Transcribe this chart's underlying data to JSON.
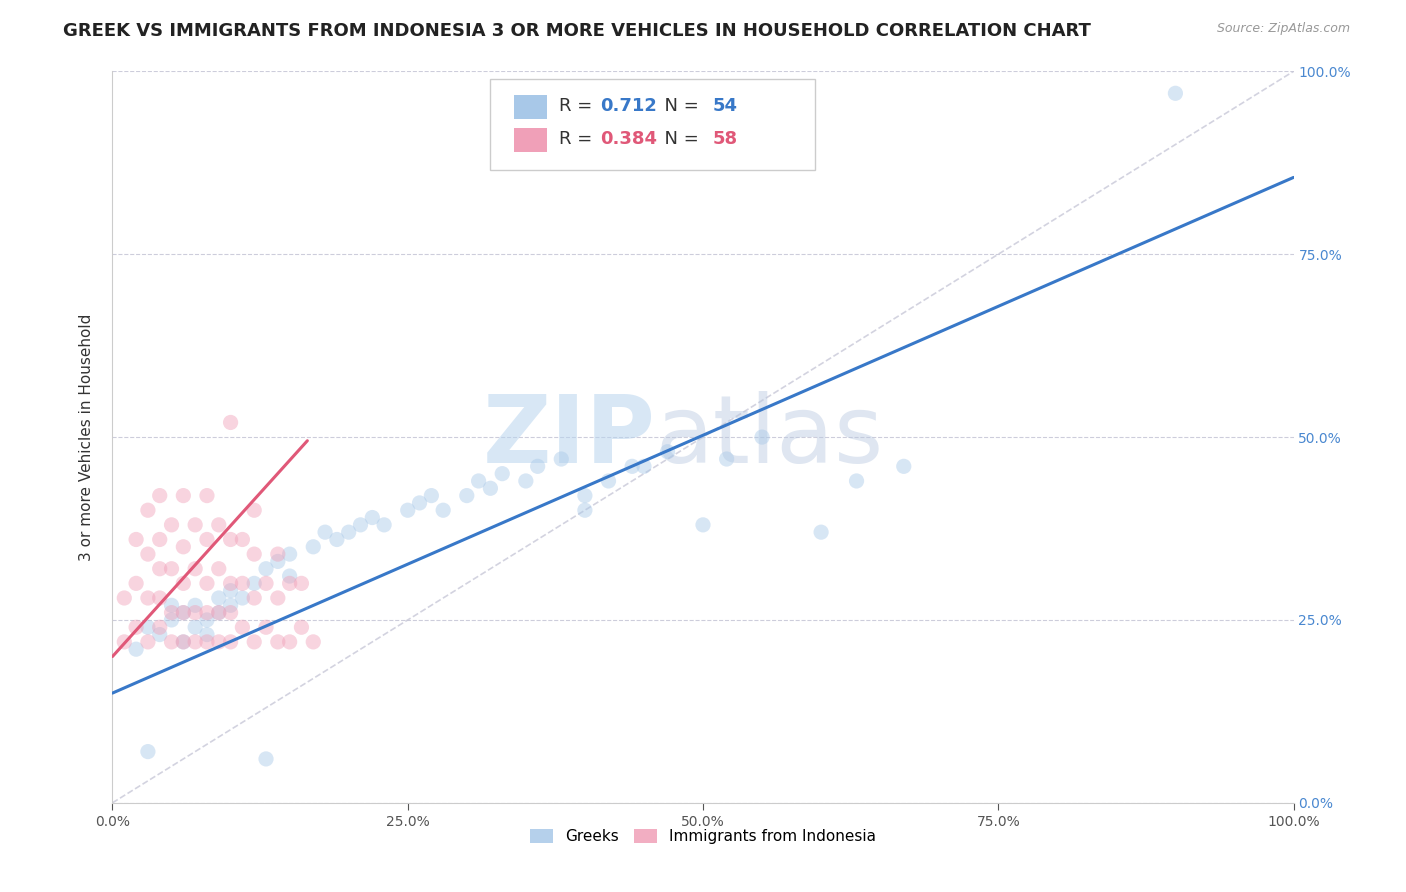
{
  "title": "GREEK VS IMMIGRANTS FROM INDONESIA 3 OR MORE VEHICLES IN HOUSEHOLD CORRELATION CHART",
  "source": "Source: ZipAtlas.com",
  "ylabel": "3 or more Vehicles in Household",
  "xlim": [
    0,
    1.0
  ],
  "ylim": [
    0,
    1.0
  ],
  "xticks": [
    0,
    0.25,
    0.5,
    0.75,
    1.0
  ],
  "yticks": [
    0,
    0.25,
    0.5,
    0.75,
    1.0
  ],
  "xticklabels": [
    "0.0%",
    "25.0%",
    "50.0%",
    "75.0%",
    "100.0%"
  ],
  "yticklabels_left": [
    "",
    "",
    "",
    "",
    ""
  ],
  "yticklabels_right": [
    "0.0%",
    "25.0%",
    "50.0%",
    "75.0%",
    "100.0%"
  ],
  "greek_R": 0.712,
  "greek_N": 54,
  "indonesia_R": 0.384,
  "indonesia_N": 58,
  "greek_color": "#a8c8e8",
  "indonesia_color": "#f0a0b8",
  "greek_line_color": "#3878c8",
  "indonesia_line_color": "#e05878",
  "ref_line_color": "#c8c8d8",
  "legend_label_greek": "Greeks",
  "legend_label_indonesia": "Immigrants from Indonesia",
  "watermark_zip": "ZIP",
  "watermark_atlas": "atlas",
  "greek_line_x0": 0.0,
  "greek_line_y0": 0.15,
  "greek_line_x1": 1.0,
  "greek_line_y1": 0.855,
  "indonesia_line_x0": 0.0,
  "indonesia_line_y0": 0.2,
  "indonesia_line_x1": 0.165,
  "indonesia_line_y1": 0.495,
  "greek_x": [
    0.02,
    0.03,
    0.03,
    0.04,
    0.05,
    0.05,
    0.06,
    0.06,
    0.07,
    0.07,
    0.08,
    0.08,
    0.09,
    0.09,
    0.1,
    0.1,
    0.11,
    0.12,
    0.13,
    0.14,
    0.15,
    0.15,
    0.17,
    0.18,
    0.19,
    0.2,
    0.21,
    0.22,
    0.23,
    0.25,
    0.26,
    0.27,
    0.28,
    0.3,
    0.31,
    0.32,
    0.33,
    0.35,
    0.36,
    0.38,
    0.4,
    0.42,
    0.44,
    0.45,
    0.47,
    0.5,
    0.52,
    0.55,
    0.6,
    0.63,
    0.67,
    0.9,
    0.13,
    0.4
  ],
  "greek_y": [
    0.21,
    0.24,
    0.07,
    0.23,
    0.25,
    0.27,
    0.22,
    0.26,
    0.24,
    0.27,
    0.23,
    0.25,
    0.26,
    0.28,
    0.27,
    0.29,
    0.28,
    0.3,
    0.32,
    0.33,
    0.31,
    0.34,
    0.35,
    0.37,
    0.36,
    0.37,
    0.38,
    0.39,
    0.38,
    0.4,
    0.41,
    0.42,
    0.4,
    0.42,
    0.44,
    0.43,
    0.45,
    0.44,
    0.46,
    0.47,
    0.42,
    0.44,
    0.46,
    0.46,
    0.48,
    0.38,
    0.47,
    0.5,
    0.37,
    0.44,
    0.46,
    0.97,
    0.06,
    0.4
  ],
  "indonesia_x": [
    0.01,
    0.01,
    0.02,
    0.02,
    0.02,
    0.03,
    0.03,
    0.03,
    0.03,
    0.04,
    0.04,
    0.04,
    0.04,
    0.04,
    0.05,
    0.05,
    0.05,
    0.05,
    0.06,
    0.06,
    0.06,
    0.06,
    0.06,
    0.07,
    0.07,
    0.07,
    0.07,
    0.08,
    0.08,
    0.08,
    0.08,
    0.08,
    0.09,
    0.09,
    0.09,
    0.09,
    0.1,
    0.1,
    0.1,
    0.1,
    0.1,
    0.11,
    0.11,
    0.11,
    0.12,
    0.12,
    0.12,
    0.12,
    0.13,
    0.13,
    0.14,
    0.14,
    0.14,
    0.15,
    0.15,
    0.16,
    0.16,
    0.17
  ],
  "indonesia_y": [
    0.22,
    0.28,
    0.24,
    0.3,
    0.36,
    0.22,
    0.28,
    0.34,
    0.4,
    0.24,
    0.28,
    0.32,
    0.36,
    0.42,
    0.22,
    0.26,
    0.32,
    0.38,
    0.22,
    0.26,
    0.3,
    0.35,
    0.42,
    0.22,
    0.26,
    0.32,
    0.38,
    0.22,
    0.26,
    0.3,
    0.36,
    0.42,
    0.22,
    0.26,
    0.32,
    0.38,
    0.22,
    0.26,
    0.3,
    0.36,
    0.52,
    0.24,
    0.3,
    0.36,
    0.22,
    0.28,
    0.34,
    0.4,
    0.24,
    0.3,
    0.22,
    0.28,
    0.34,
    0.22,
    0.3,
    0.24,
    0.3,
    0.22
  ],
  "background_color": "#ffffff",
  "grid_color": "#c8c8d8",
  "title_fontsize": 13,
  "axis_label_fontsize": 11,
  "tick_fontsize": 10,
  "marker_size": 120,
  "marker_alpha": 0.45
}
